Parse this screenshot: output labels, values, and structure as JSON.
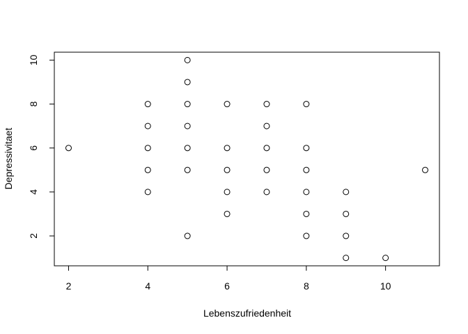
{
  "chart_data": {
    "type": "scatter",
    "title": "",
    "xlabel": "Lebenszufriedenheit",
    "ylabel": "Depressivitaet",
    "xlim": [
      1.64,
      11.36
    ],
    "ylim": [
      0.64,
      10.36
    ],
    "x_ticks": [
      "2",
      "4",
      "6",
      "8",
      "10"
    ],
    "y_ticks": [
      "2",
      "4",
      "6",
      "8",
      "10"
    ],
    "grid": false,
    "marker": "open-circle",
    "points": [
      {
        "x": 2,
        "y": 6
      },
      {
        "x": 4,
        "y": 8
      },
      {
        "x": 4,
        "y": 7
      },
      {
        "x": 4,
        "y": 6
      },
      {
        "x": 4,
        "y": 5
      },
      {
        "x": 4,
        "y": 4
      },
      {
        "x": 5,
        "y": 10
      },
      {
        "x": 5,
        "y": 9
      },
      {
        "x": 5,
        "y": 8
      },
      {
        "x": 5,
        "y": 7
      },
      {
        "x": 5,
        "y": 6
      },
      {
        "x": 5,
        "y": 5
      },
      {
        "x": 5,
        "y": 2
      },
      {
        "x": 6,
        "y": 8
      },
      {
        "x": 6,
        "y": 6
      },
      {
        "x": 6,
        "y": 5
      },
      {
        "x": 6,
        "y": 4
      },
      {
        "x": 6,
        "y": 3
      },
      {
        "x": 7,
        "y": 8
      },
      {
        "x": 7,
        "y": 7
      },
      {
        "x": 7,
        "y": 6
      },
      {
        "x": 7,
        "y": 5
      },
      {
        "x": 7,
        "y": 4
      },
      {
        "x": 8,
        "y": 8
      },
      {
        "x": 8,
        "y": 6
      },
      {
        "x": 8,
        "y": 5
      },
      {
        "x": 8,
        "y": 4
      },
      {
        "x": 8,
        "y": 3
      },
      {
        "x": 8,
        "y": 2
      },
      {
        "x": 9,
        "y": 4
      },
      {
        "x": 9,
        "y": 3
      },
      {
        "x": 9,
        "y": 2
      },
      {
        "x": 9,
        "y": 1
      },
      {
        "x": 10,
        "y": 1
      },
      {
        "x": 11,
        "y": 5
      }
    ]
  }
}
